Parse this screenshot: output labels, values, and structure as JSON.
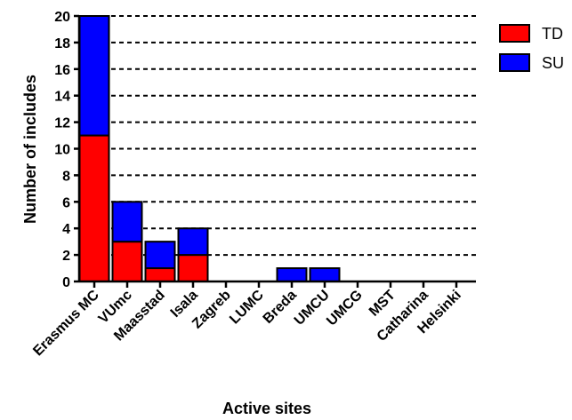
{
  "chart_data": {
    "type": "bar",
    "stacked": true,
    "categories": [
      "Erasmus MC",
      "VUmc",
      "Maasstad",
      "Isala",
      "Zagreb",
      "LUMC",
      "Breda",
      "UMCU",
      "UMCG",
      "MST",
      "Catharina",
      "Helsinki"
    ],
    "series": [
      {
        "name": "TD",
        "values": [
          11,
          3,
          1,
          2,
          0,
          0,
          0,
          0,
          0,
          0,
          0,
          0
        ],
        "color": "#ff0000"
      },
      {
        "name": "SU",
        "values": [
          9,
          3,
          2,
          2,
          0,
          0,
          1,
          1,
          0,
          0,
          0,
          0
        ],
        "color": "#0000ff"
      }
    ],
    "xlabel": "Active sites",
    "ylabel": "Number of includes",
    "ylim": [
      0,
      20
    ],
    "yticks": [
      0,
      2,
      4,
      6,
      8,
      10,
      12,
      14,
      16,
      18,
      20
    ],
    "grid": "horizontal-dashed",
    "legend": "top-right"
  }
}
